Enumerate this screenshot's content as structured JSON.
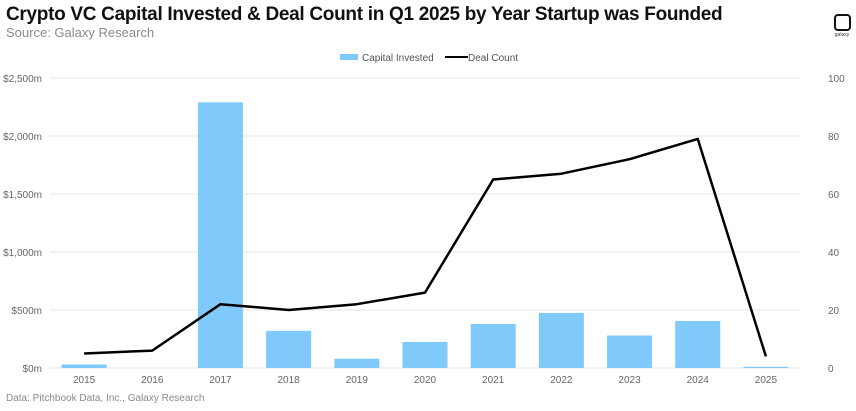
{
  "header": {
    "title": "Crypto VC Capital Invested & Deal Count in Q1 2025 by Year Startup was Founded",
    "subtitle": "Source: Galaxy Research"
  },
  "logo": {
    "icon": "galaxy-logo-icon",
    "text": "galaxy"
  },
  "footer": {
    "note": "Data: Pitchbook Data, Inc., Galaxy Research"
  },
  "colors": {
    "bar": "#80CAFB",
    "line": "#000000",
    "grid": "#e6e6e6"
  },
  "chart_data": {
    "type": "bar",
    "title": "Crypto VC Capital Invested & Deal Count in Q1 2025 by Year Startup was Founded",
    "xlabel": "",
    "ylabel": "",
    "categories": [
      "2015",
      "2016",
      "2017",
      "2018",
      "2019",
      "2020",
      "2021",
      "2022",
      "2023",
      "2024",
      "2025"
    ],
    "series": [
      {
        "name": "Capital Invested",
        "type": "bar",
        "axis": "left",
        "unit": "$m",
        "values": [
          30,
          0,
          2290,
          320,
          80,
          225,
          380,
          475,
          280,
          405,
          10
        ]
      },
      {
        "name": "Deal Count",
        "type": "line",
        "axis": "right",
        "values": [
          5,
          6,
          22,
          20,
          22,
          26,
          65,
          67,
          72,
          79,
          4
        ]
      }
    ],
    "ylim": [
      0,
      2500
    ],
    "y2lim": [
      0,
      100
    ],
    "yticks": [
      "$0m",
      "$500m",
      "$1,000m",
      "$1,500m",
      "$2,000m",
      "$2,500m"
    ],
    "ytick_values": [
      0,
      500,
      1000,
      1500,
      2000,
      2500
    ],
    "y2ticks": [
      "0",
      "20",
      "40",
      "60",
      "80",
      "100"
    ],
    "y2tick_values": [
      0,
      20,
      40,
      60,
      80,
      100
    ],
    "grid": true,
    "legend": {
      "position": "top-center",
      "entries": [
        "Capital Invested",
        "Deal Count"
      ]
    }
  }
}
